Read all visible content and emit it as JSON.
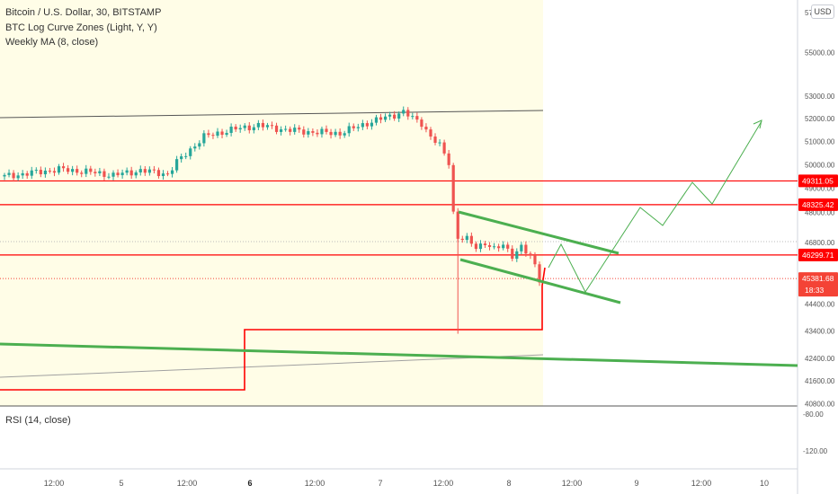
{
  "header": {
    "title": "Bitcoin / U.S. Dollar, 30, BITSTAMP",
    "indicator_1": "BTC Log Curve Zones (Light, Y, Y)",
    "indicator_2": "Weekly MA (8, close)",
    "currency": "USD"
  },
  "rsi_pane": {
    "label": "RSI (14, close)"
  },
  "colors": {
    "up": "#26a69a",
    "down": "#ef5350",
    "level": "#ff0000",
    "trend": "#4caf50",
    "zone": "#fffde7",
    "last_price": "#f44336"
  },
  "chart_data": {
    "type": "candlestick",
    "symbol": "Bitcoin / U.S. Dollar",
    "interval": "30",
    "exchange": "BITSTAMP",
    "y_scale": "log",
    "price_axis_ticks": [
      "55000.00",
      "53000.00",
      "52000.00",
      "51000.00",
      "50000.00",
      "49000.00",
      "48000.00",
      "46800.00",
      "44400.00",
      "43400.00",
      "42400.00",
      "41600.00",
      "40800.00"
    ],
    "price_axis_top_label": "57000.00",
    "time_axis_ticks": [
      "12:00",
      "5",
      "12:00",
      "6",
      "12:00",
      "7",
      "12:00",
      "8",
      "12:00",
      "9",
      "12:00",
      "10"
    ],
    "time_axis_bold": [
      "6"
    ],
    "price_labels": [
      {
        "label": "49311.05",
        "value": 49311.05
      },
      {
        "label": "48325.42",
        "value": 48325.42
      },
      {
        "label": "46299.71",
        "value": 46299.71
      }
    ],
    "last_price": {
      "label": "45381.68",
      "value": 45381.68,
      "countdown": "18:33"
    },
    "close_path": [
      [
        0,
        49500
      ],
      [
        6,
        49650
      ],
      [
        12,
        49800
      ],
      [
        18,
        49700
      ],
      [
        24,
        49550
      ],
      [
        30,
        49750
      ],
      [
        36,
        49600
      ],
      [
        38,
        50100
      ],
      [
        44,
        51200
      ],
      [
        50,
        51500
      ],
      [
        56,
        51700
      ],
      [
        62,
        51500
      ],
      [
        68,
        51400
      ],
      [
        74,
        51350
      ],
      [
        80,
        51800
      ],
      [
        85,
        52100
      ],
      [
        88,
        52300
      ],
      [
        90,
        52000
      ],
      [
        92,
        51800
      ],
      [
        94,
        51200
      ],
      [
        96,
        50800
      ],
      [
        98,
        50100
      ],
      [
        99,
        48000
      ],
      [
        100,
        47000
      ],
      [
        102,
        46900
      ],
      [
        104,
        46600
      ],
      [
        106,
        46800
      ],
      [
        108,
        46500
      ],
      [
        110,
        46700
      ],
      [
        112,
        46300
      ],
      [
        114,
        46600
      ],
      [
        116,
        46200
      ],
      [
        117,
        45900
      ],
      [
        118,
        45381.68
      ]
    ],
    "spike_low": [
      100,
      43300
    ],
    "rsi_ticks": [
      "-80.00",
      "-120.00"
    ]
  }
}
